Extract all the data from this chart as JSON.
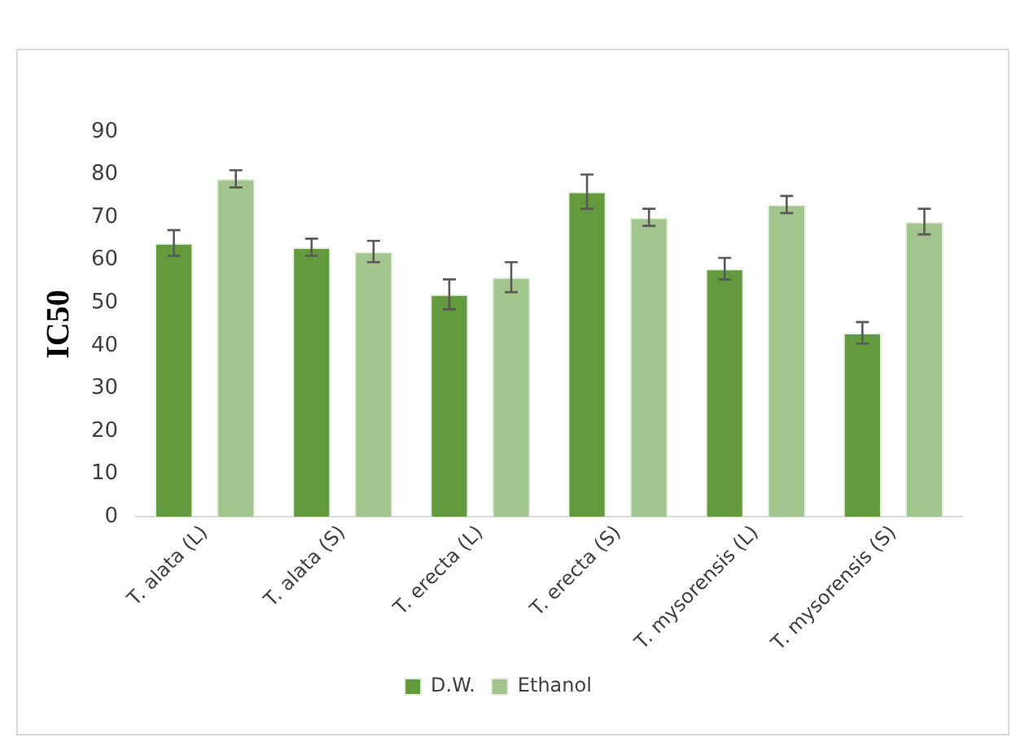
{
  "chart_data": {
    "type": "bar",
    "ylabel": "IC50",
    "categories": [
      "T. alata (L)",
      "T. alata (S)",
      "T. erecta (L)",
      "T. erecta (S)",
      "T. mysorensis (L)",
      "T. mysorensis (S)"
    ],
    "series": [
      {
        "name": "D.W.",
        "color": "#629a3d",
        "values": [
          64,
          63,
          52,
          76,
          58,
          43
        ],
        "errors": [
          3,
          2,
          3.5,
          4,
          2.5,
          2.5
        ]
      },
      {
        "name": "Ethanol",
        "color": "#a2c58e",
        "values": [
          79,
          62,
          56,
          70,
          73,
          69
        ],
        "errors": [
          2,
          2.5,
          3.5,
          2,
          2,
          3
        ]
      }
    ],
    "ylim": [
      0,
      90
    ],
    "yticks": [
      0,
      10,
      20,
      30,
      40,
      50,
      60,
      70,
      80,
      90
    ],
    "grid": false,
    "legend": "bottom"
  }
}
